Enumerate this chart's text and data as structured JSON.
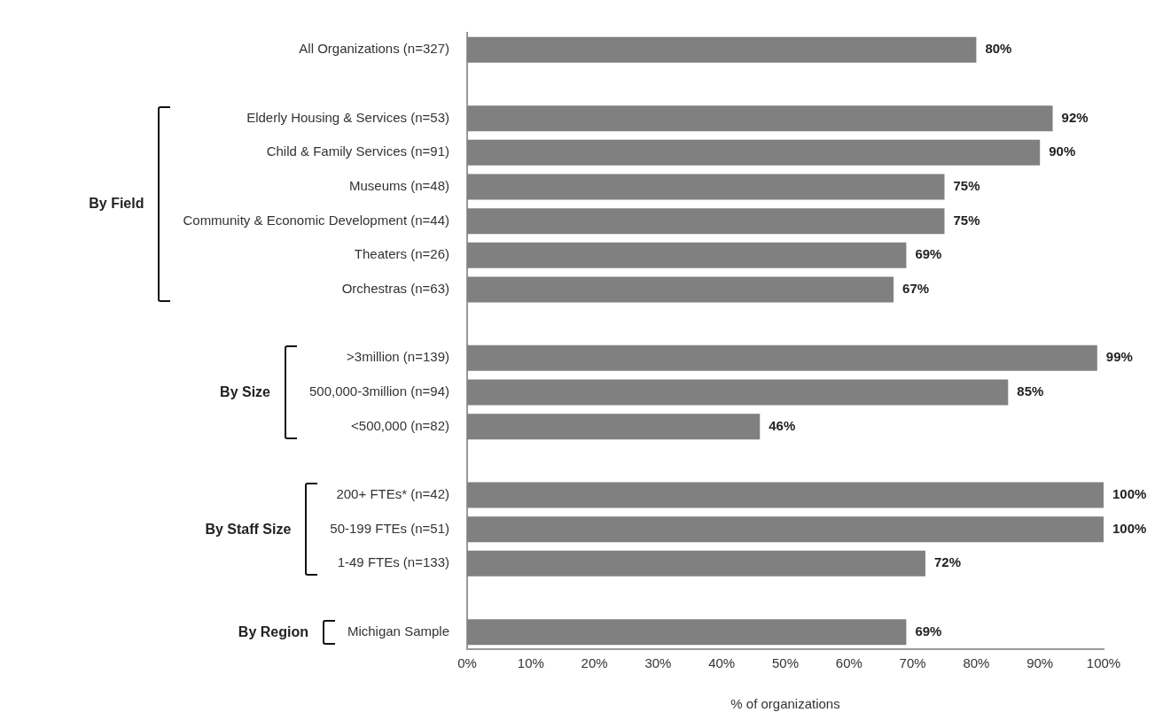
{
  "chart_data": {
    "type": "bar",
    "orientation": "horizontal",
    "xlabel": "% of organizations",
    "categories": [
      "All Organizations (n=327)",
      null,
      "Elderly Housing & Services (n=53)",
      "Child & Family Services (n=91)",
      "Museums (n=48)",
      "Community & Economic Development (n=44)",
      "Theaters (n=26)",
      "Orchestras (n=63)",
      null,
      ">3million (n=139)",
      "500,000-3million (n=94)",
      "<500,000 (n=82)",
      null,
      "200+ FTEs* (n=42)",
      "50-199 FTEs (n=51)",
      "1-49 FTEs (n=133)",
      null,
      "Michigan Sample"
    ],
    "values": [
      80,
      null,
      92,
      90,
      75,
      75,
      69,
      67,
      null,
      99,
      85,
      46,
      null,
      100,
      100,
      72,
      null,
      69
    ],
    "value_labels": [
      "80%",
      null,
      "92%",
      "90%",
      "75%",
      "75%",
      "69%",
      "67%",
      null,
      "99%",
      "85%",
      "46%",
      null,
      "100%",
      "100%",
      "72%",
      null,
      "69%"
    ],
    "color": "#808080",
    "xlim": [
      0,
      100
    ],
    "xticks": [
      {
        "value": 0,
        "label": "0%"
      },
      {
        "value": 10,
        "label": "10%"
      },
      {
        "value": 20,
        "label": "20%"
      },
      {
        "value": 30,
        "label": "30%"
      },
      {
        "value": 40,
        "label": "40%"
      },
      {
        "value": 50,
        "label": "50%"
      },
      {
        "value": 60,
        "label": "60%"
      },
      {
        "value": 70,
        "label": "70%"
      },
      {
        "value": 80,
        "label": "80%"
      },
      {
        "value": 90,
        "label": "90%"
      },
      {
        "value": 100,
        "label": "100%"
      }
    ],
    "annotations": [
      "By Field",
      "By Size",
      "By Staff Size",
      "By Region"
    ],
    "grid": false,
    "legend": false
  }
}
